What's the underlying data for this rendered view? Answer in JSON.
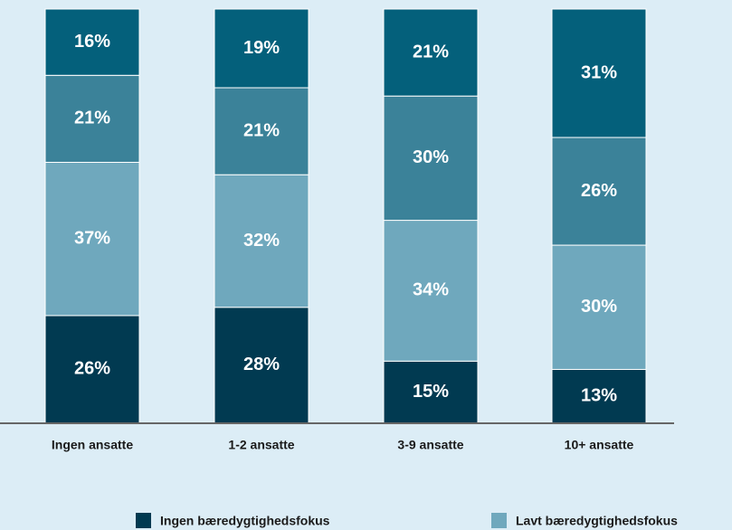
{
  "chart_data": {
    "type": "stacked_bar",
    "categories": [
      "Ingen ansatte",
      "1-2 ansatte",
      "3-9 ansatte",
      "10+ ansatte"
    ],
    "series": [
      {
        "name": "Ingen bæredygtighedsfokus",
        "color": "#013a51",
        "values": [
          26,
          28,
          15,
          13
        ],
        "value_labels": [
          "26%",
          "28%",
          "15%",
          "13%"
        ]
      },
      {
        "name": "Lavt bæredygtighedsfokus",
        "color": "#6fa8bd",
        "values": [
          37,
          32,
          34,
          30
        ],
        "value_labels": [
          "37%",
          "32%",
          "34%",
          "30%"
        ]
      },
      {
        "color": "#3b8299",
        "values": [
          21,
          21,
          30,
          26
        ],
        "value_labels": [
          "21%",
          "21%",
          "30%",
          "26%"
        ]
      },
      {
        "color": "#04607b",
        "values": [
          16,
          19,
          21,
          31
        ],
        "value_labels": [
          "16%",
          "19%",
          "21%",
          "31%"
        ]
      }
    ],
    "ylim": [
      0,
      100
    ]
  }
}
